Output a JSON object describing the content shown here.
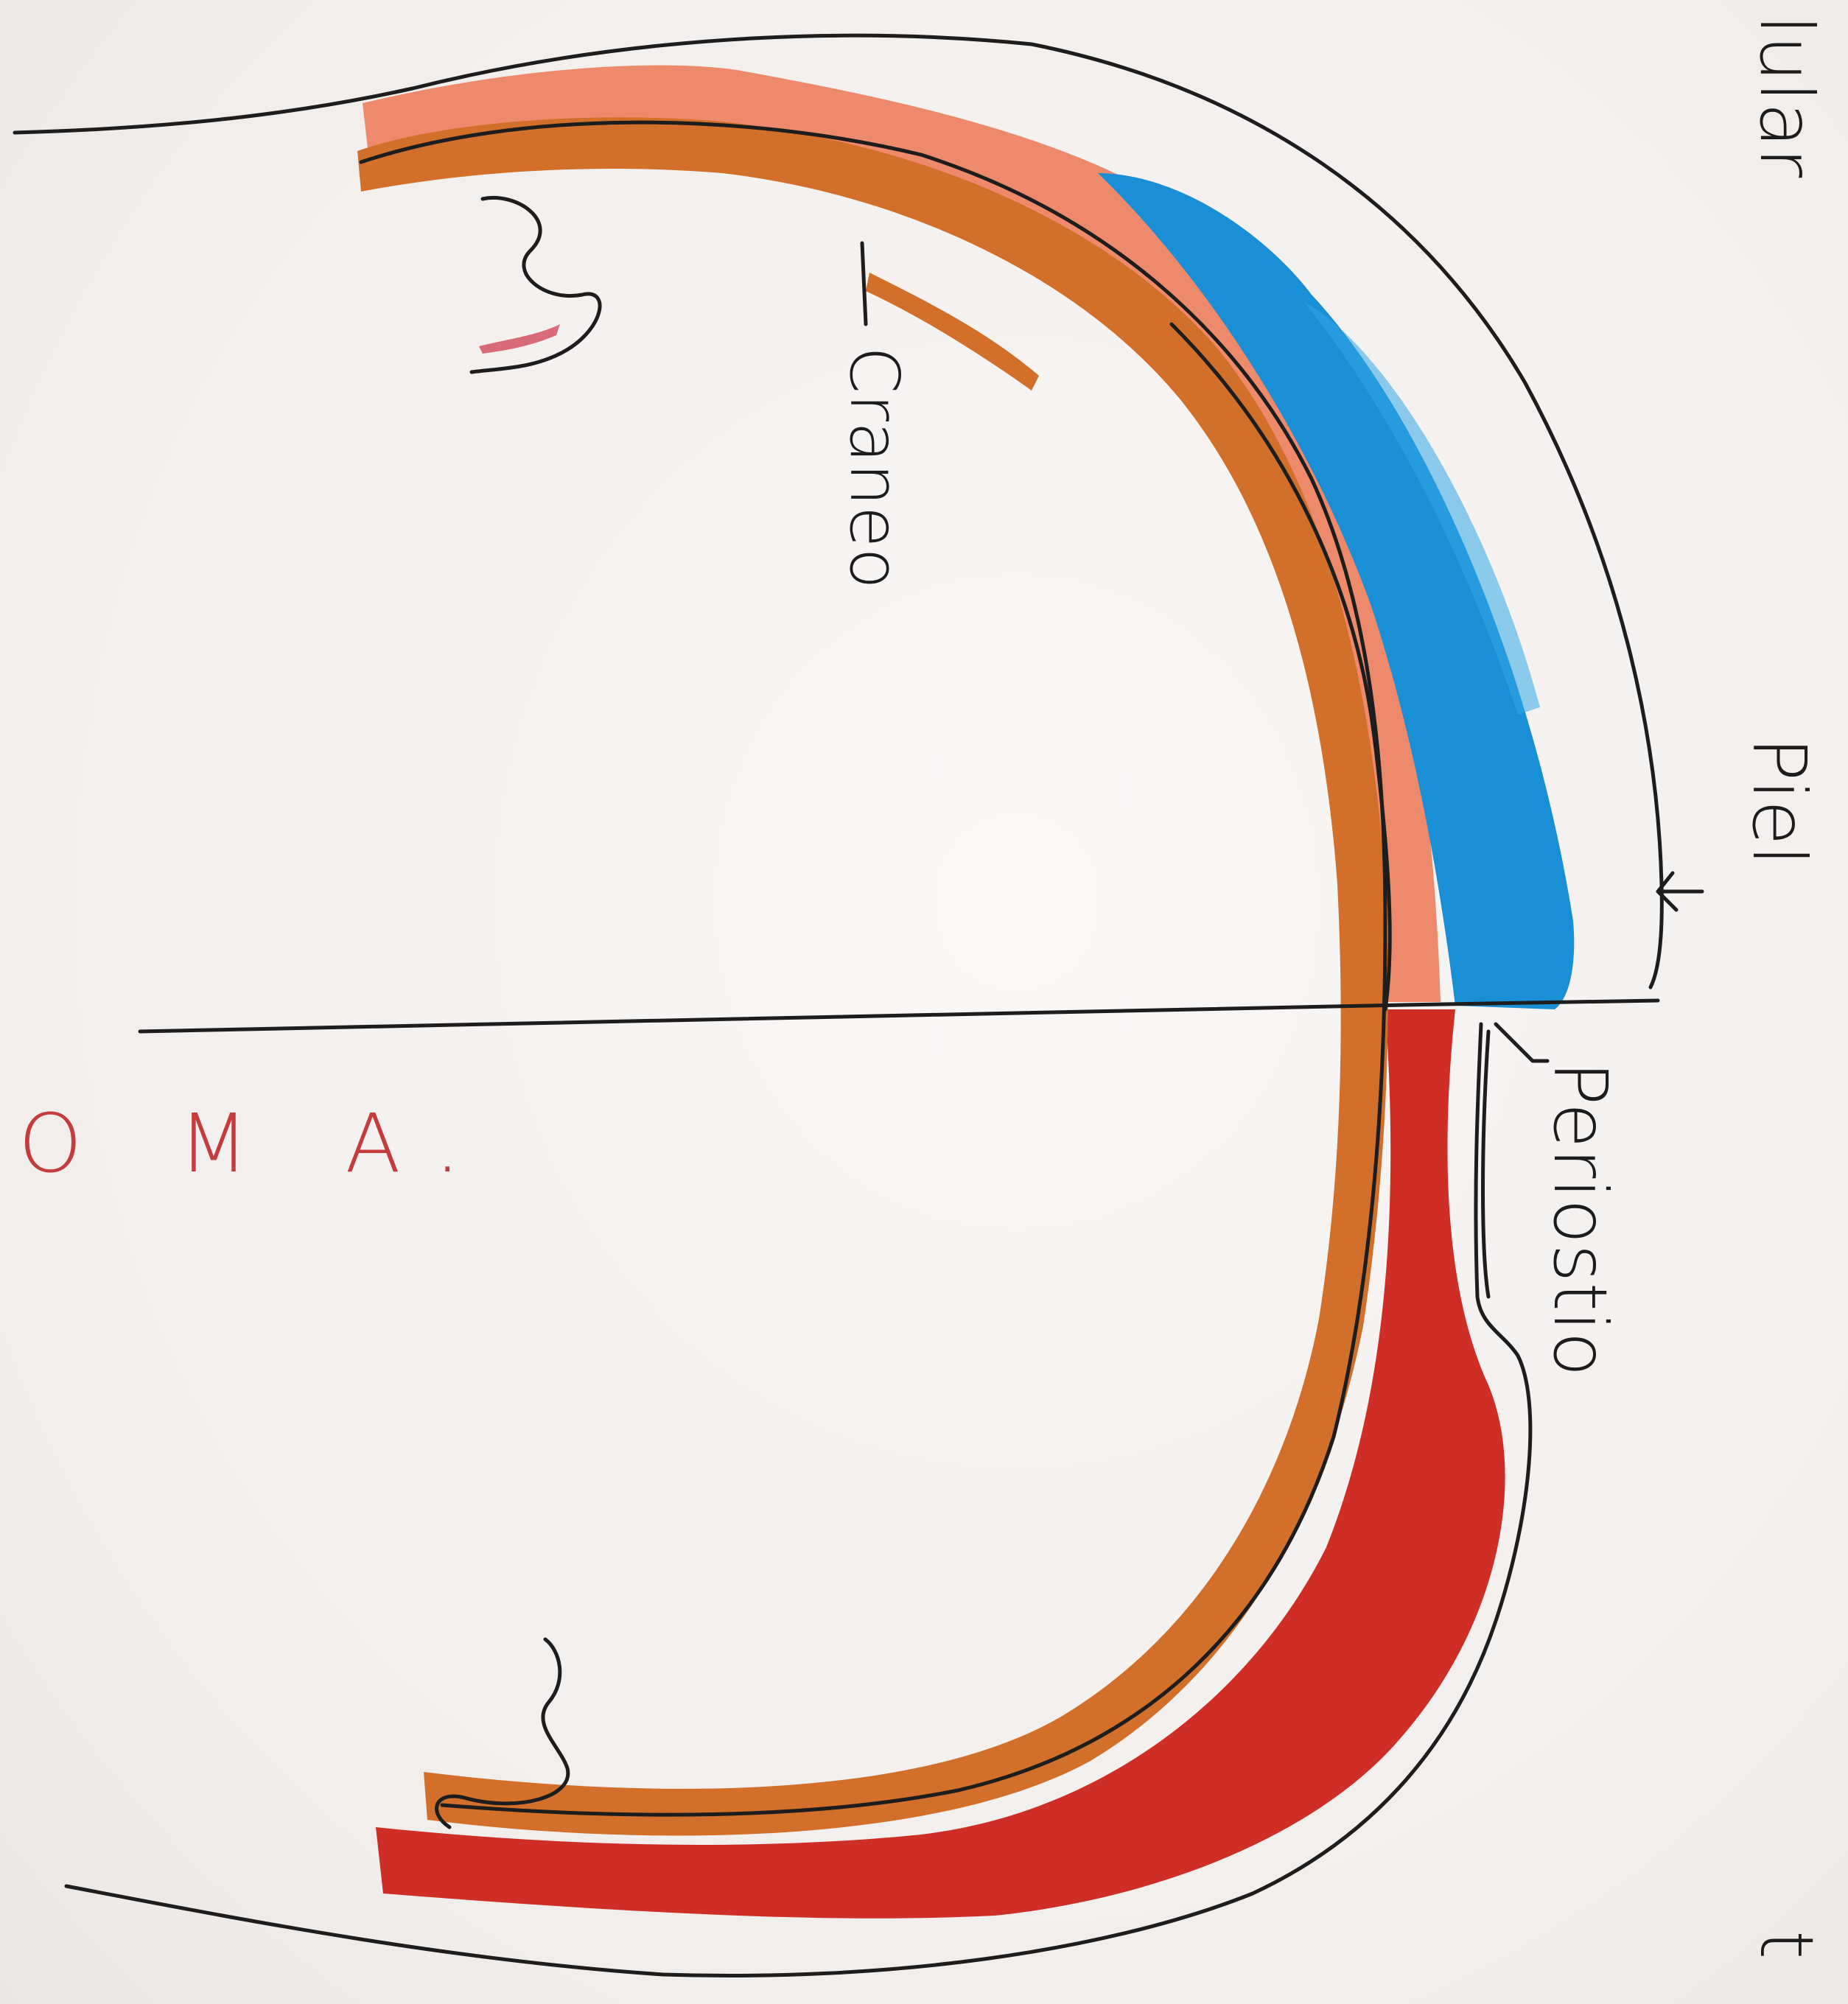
{
  "labels": {
    "craneo": "Craneo",
    "piel": "Piel",
    "periostio": "Periostio",
    "oma": "O M A.",
    "top_right_fragment": "lular",
    "bottom_right_fragment": "t"
  },
  "colors": {
    "subcutaneous_salmon": "#ee8a6c",
    "skull_orange": "#d2702b",
    "fluid_blue": "#1a8fd6",
    "fluid_blue_light": "#31a7e6",
    "hematoma_red": "#cf2e26",
    "ink": "#1d1d1d",
    "oma_text": "#c43c3c"
  }
}
